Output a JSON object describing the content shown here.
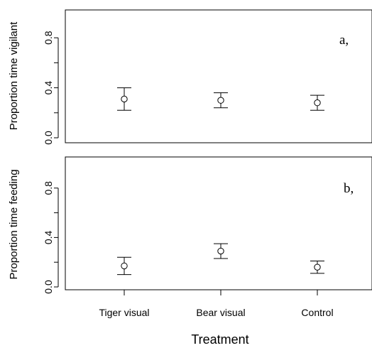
{
  "chart_data": [
    {
      "type": "scatter",
      "panel_label": "a,",
      "ylabel": "Proportion time vigilant",
      "ylim": [
        0,
        1
      ],
      "yticks": [
        "0.0",
        "0.4",
        "0.8"
      ],
      "ytick_values": [
        0,
        0.4,
        0.8
      ],
      "categories": [
        "Tiger visual",
        "Bear visual",
        "Control"
      ],
      "values": [
        0.31,
        0.3,
        0.28
      ],
      "error_low": [
        0.22,
        0.24,
        0.22
      ],
      "error_high": [
        0.4,
        0.36,
        0.34
      ]
    },
    {
      "type": "scatter",
      "panel_label": "b,",
      "ylabel": "Proportion time feeding",
      "ylim": [
        0,
        1
      ],
      "yticks": [
        "0.0",
        "0.4",
        "0.8"
      ],
      "ytick_values": [
        0,
        0.4,
        0.8
      ],
      "categories": [
        "Tiger visual",
        "Bear visual",
        "Control"
      ],
      "values": [
        0.17,
        0.29,
        0.16
      ],
      "error_low": [
        0.1,
        0.23,
        0.11
      ],
      "error_high": [
        0.24,
        0.35,
        0.21
      ]
    }
  ],
  "xlabel": "Treatment",
  "xtick_labels": [
    "Tiger visual",
    "Bear visual",
    "Control"
  ]
}
